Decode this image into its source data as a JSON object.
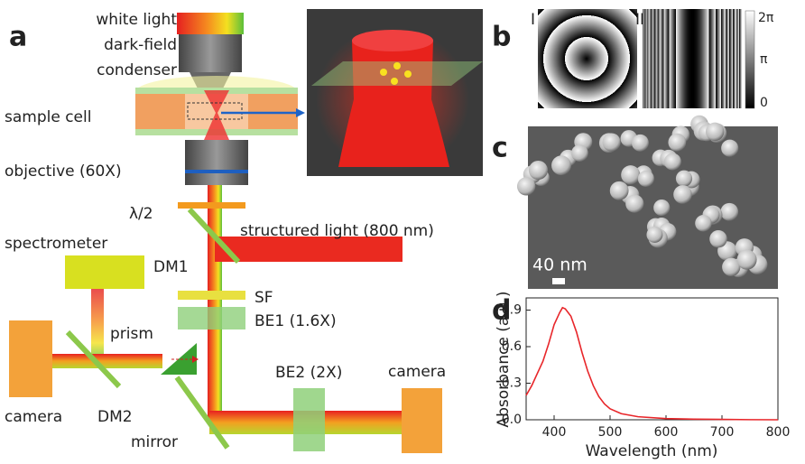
{
  "panel_a": {
    "label": "a",
    "condenser": [
      "white light",
      "dark-field",
      "condenser"
    ],
    "sample_cell": "sample cell",
    "objective": "objective (60X)",
    "half_wave": "λ/2",
    "structured_light": "structured light (800 nm)",
    "spectrometer": "spectrometer",
    "dm1": "DM1",
    "sf": "SF",
    "be1": "BE1 (1.6X)",
    "prism": "prism",
    "camera_left": "camera",
    "dm2": "DM2",
    "mirror": "mirror",
    "be2": "BE2 (2X)",
    "camera_right": "camera"
  },
  "panel_b": {
    "label": "b",
    "pattern_1": "I",
    "pattern_2": "II",
    "colorbar_ticks": [
      "2π",
      "π",
      "0"
    ]
  },
  "panel_c": {
    "label": "c",
    "scale_bar": "40 nm"
  },
  "chart_data": {
    "type": "line",
    "label": "d",
    "x_label": "Wavelength (nm)",
    "y_label": "Absorbance (a.u.)",
    "x": [
      350,
      360,
      370,
      380,
      390,
      400,
      410,
      415,
      420,
      430,
      440,
      450,
      460,
      470,
      480,
      490,
      500,
      520,
      550,
      600,
      650,
      700,
      750,
      800
    ],
    "values": [
      0.2,
      0.28,
      0.38,
      0.48,
      0.62,
      0.78,
      0.88,
      0.92,
      0.91,
      0.85,
      0.72,
      0.55,
      0.4,
      0.28,
      0.19,
      0.13,
      0.09,
      0.05,
      0.025,
      0.01,
      0.005,
      0.003,
      0.001,
      0
    ],
    "color": "#e8262a",
    "xlim": [
      350,
      800
    ],
    "ylim": [
      0,
      1.0
    ],
    "xticks": [
      400,
      500,
      600,
      700,
      800
    ],
    "yticks": [
      {
        "value": 0,
        "label": "0.0"
      },
      0.3,
      0.6,
      0.9
    ]
  }
}
